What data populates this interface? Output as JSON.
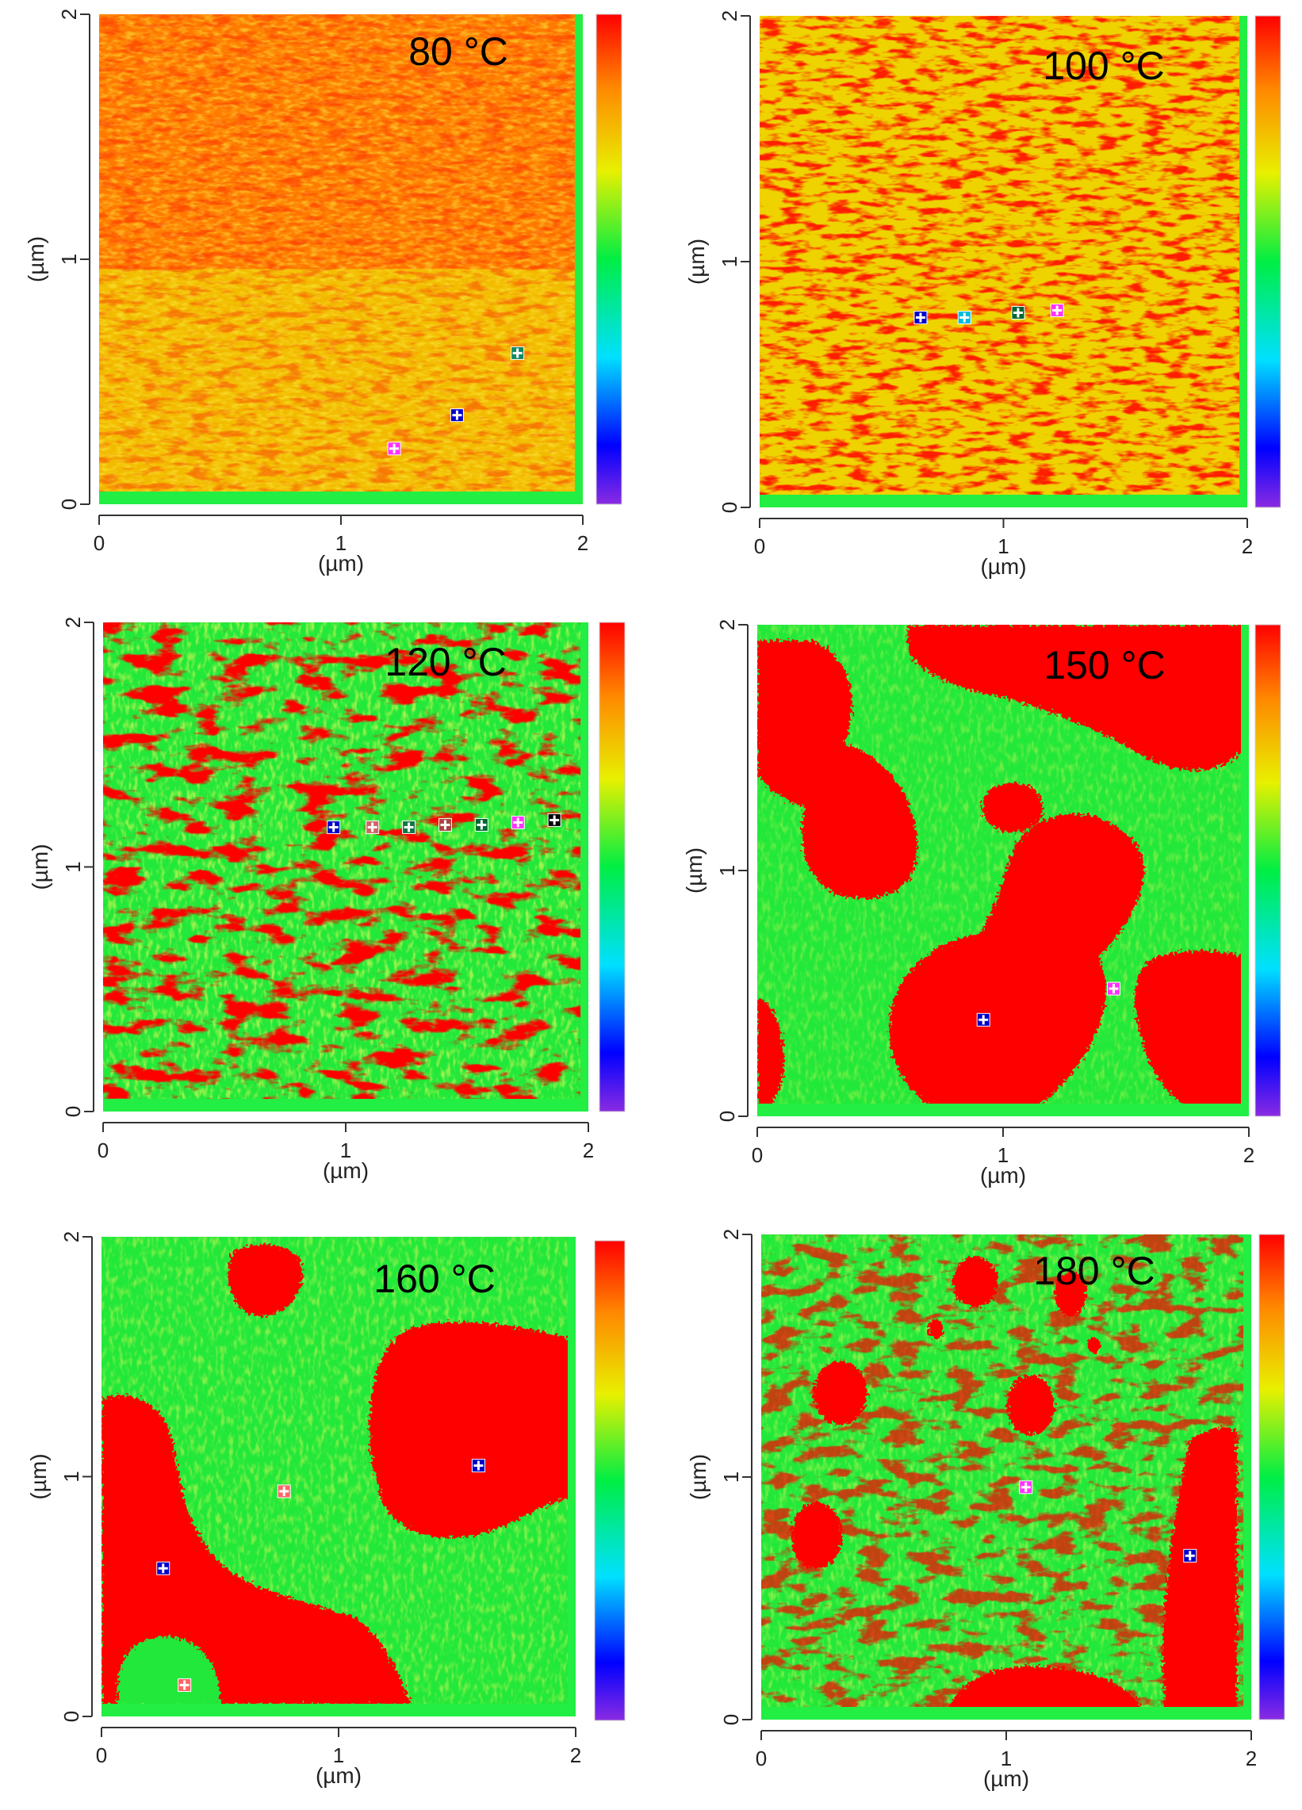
{
  "figure": {
    "palette": {
      "red": "#ff0000",
      "orange": "#ff7a00",
      "yellow": "#e8f000",
      "green": "#22e83a",
      "cyan": "#00e0ff",
      "blue": "#0000ff",
      "violet": "#8a2be2",
      "base_strip": "#22ee44"
    },
    "axis_ticks": [
      "0",
      "1",
      "2"
    ],
    "axis_unit": "(µm)",
    "panels": [
      {
        "id": "p80",
        "temperature": "80 °C",
        "pattern": "fine-orange",
        "markers": [
          {
            "x": 1.22,
            "y": 0.18,
            "color": "#ff33ff"
          },
          {
            "x": 1.48,
            "y": 0.32,
            "color": "#0000cc"
          },
          {
            "x": 1.73,
            "y": 0.58,
            "color": "#118866"
          }
        ]
      },
      {
        "id": "p100",
        "temperature": "100 °C",
        "pattern": "streaky",
        "markers": [
          {
            "x": 0.66,
            "y": 0.74,
            "color": "#0000cc"
          },
          {
            "x": 0.84,
            "y": 0.74,
            "color": "#00bbdd"
          },
          {
            "x": 1.06,
            "y": 0.76,
            "color": "#006633"
          },
          {
            "x": 1.22,
            "y": 0.77,
            "color": "#ff33ff"
          }
        ]
      },
      {
        "id": "p120",
        "temperature": "120 °C",
        "pattern": "mixed",
        "markers": [
          {
            "x": 0.95,
            "y": 1.14,
            "color": "#0000cc"
          },
          {
            "x": 1.11,
            "y": 1.14,
            "color": "#cc6666"
          },
          {
            "x": 1.26,
            "y": 1.14,
            "color": "#117744"
          },
          {
            "x": 1.41,
            "y": 1.15,
            "color": "#aa4444"
          },
          {
            "x": 1.56,
            "y": 1.15,
            "color": "#006633"
          },
          {
            "x": 1.71,
            "y": 1.16,
            "color": "#ff33ff"
          },
          {
            "x": 1.86,
            "y": 1.17,
            "color": "#000000"
          }
        ]
      },
      {
        "id": "p150",
        "temperature": "150 °C",
        "pattern": "domains",
        "markers": [
          {
            "x": 0.92,
            "y": 0.35,
            "color": "#0000cc"
          },
          {
            "x": 1.45,
            "y": 0.48,
            "color": "#ff33ff"
          }
        ]
      },
      {
        "id": "p160",
        "temperature": "160 °C",
        "pattern": "large-domains",
        "markers": [
          {
            "x": 0.26,
            "y": 0.58,
            "color": "#0000cc"
          },
          {
            "x": 0.35,
            "y": 0.08,
            "color": "#ff6666"
          },
          {
            "x": 0.77,
            "y": 0.91,
            "color": "#ff6666"
          },
          {
            "x": 1.59,
            "y": 1.02,
            "color": "#0000cc"
          }
        ]
      },
      {
        "id": "p180",
        "temperature": "180 °C",
        "pattern": "islands",
        "markers": [
          {
            "x": 1.08,
            "y": 0.93,
            "color": "#ff33ff"
          },
          {
            "x": 1.75,
            "y": 0.64,
            "color": "#0000cc"
          }
        ]
      }
    ]
  }
}
